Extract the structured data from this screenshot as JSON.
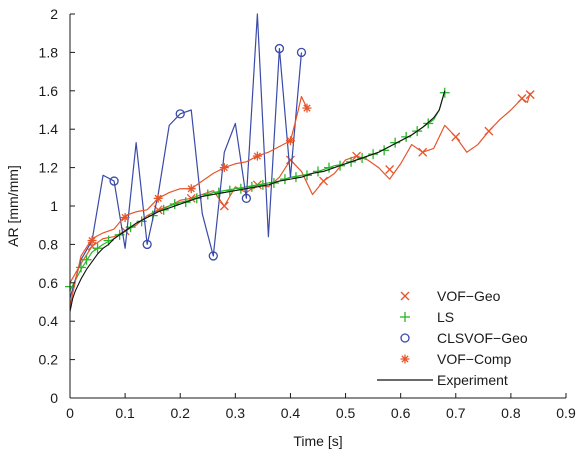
{
  "chart_data": {
    "type": "line",
    "xlabel": "Time [s]",
    "ylabel": "AR [mm/mm]",
    "xlim": [
      0,
      0.9
    ],
    "ylim": [
      0,
      2
    ],
    "x_ticks": [
      0,
      0.1,
      0.2,
      0.3,
      0.4,
      0.5,
      0.6,
      0.7,
      0.8,
      0.9
    ],
    "x_tick_labels": [
      "0",
      "0.1",
      "0.2",
      "0.3",
      "0.4",
      "0.5",
      "0.6",
      "0.7",
      "0.8",
      "0.9"
    ],
    "y_ticks": [
      0,
      0.2,
      0.4,
      0.6,
      0.8,
      1,
      1.2,
      1.4,
      1.6,
      1.8,
      2
    ],
    "y_tick_labels": [
      "0",
      "0.2",
      "0.4",
      "0.6",
      "0.8",
      "1",
      "1.2",
      "1.4",
      "1.6",
      "1.8",
      "2"
    ],
    "grid": false,
    "legend_position": "bottom-right",
    "series": [
      {
        "name": "VOF−Geo",
        "marker": "x",
        "color": "#e8552a",
        "line": [
          [
            0.0,
            0.6
          ],
          [
            0.02,
            0.7
          ],
          [
            0.04,
            0.79
          ],
          [
            0.06,
            0.83
          ],
          [
            0.08,
            0.84
          ],
          [
            0.1,
            0.87
          ],
          [
            0.12,
            0.9
          ],
          [
            0.14,
            0.95
          ],
          [
            0.16,
            0.98
          ],
          [
            0.18,
            1.0
          ],
          [
            0.2,
            1.03
          ],
          [
            0.22,
            1.04
          ],
          [
            0.24,
            1.06
          ],
          [
            0.26,
            1.08
          ],
          [
            0.28,
            1.0
          ],
          [
            0.3,
            1.1
          ],
          [
            0.32,
            1.07
          ],
          [
            0.34,
            1.11
          ],
          [
            0.36,
            1.1
          ],
          [
            0.38,
            1.15
          ],
          [
            0.4,
            1.24
          ],
          [
            0.42,
            1.18
          ],
          [
            0.44,
            1.06
          ],
          [
            0.46,
            1.13
          ],
          [
            0.48,
            1.17
          ],
          [
            0.5,
            1.24
          ],
          [
            0.52,
            1.26
          ],
          [
            0.54,
            1.24
          ],
          [
            0.56,
            1.2
          ],
          [
            0.58,
            1.14
          ],
          [
            0.6,
            1.22
          ],
          [
            0.62,
            1.32
          ],
          [
            0.64,
            1.28
          ],
          [
            0.66,
            1.3
          ],
          [
            0.68,
            1.42
          ],
          [
            0.7,
            1.36
          ],
          [
            0.72,
            1.28
          ],
          [
            0.74,
            1.32
          ],
          [
            0.76,
            1.39
          ],
          [
            0.78,
            1.45
          ],
          [
            0.8,
            1.5
          ],
          [
            0.82,
            1.56
          ],
          [
            0.83,
            1.54
          ],
          [
            0.835,
            1.59
          ]
        ],
        "markers": [
          [
            0.04,
            0.79
          ],
          [
            0.1,
            0.87
          ],
          [
            0.16,
            0.98
          ],
          [
            0.22,
            1.04
          ],
          [
            0.28,
            1.0
          ],
          [
            0.34,
            1.11
          ],
          [
            0.4,
            1.24
          ],
          [
            0.46,
            1.13
          ],
          [
            0.52,
            1.26
          ],
          [
            0.58,
            1.19
          ],
          [
            0.64,
            1.28
          ],
          [
            0.7,
            1.36
          ],
          [
            0.76,
            1.39
          ],
          [
            0.82,
            1.56
          ],
          [
            0.835,
            1.58
          ]
        ]
      },
      {
        "name": "LS",
        "marker": "+",
        "color": "#2bb52b",
        "line": [
          [
            0.0,
            0.56
          ],
          [
            0.02,
            0.67
          ],
          [
            0.04,
            0.76
          ],
          [
            0.06,
            0.8
          ],
          [
            0.08,
            0.83
          ],
          [
            0.1,
            0.87
          ],
          [
            0.12,
            0.91
          ],
          [
            0.14,
            0.94
          ],
          [
            0.16,
            0.97
          ],
          [
            0.18,
            1.0
          ],
          [
            0.2,
            1.02
          ],
          [
            0.22,
            1.03
          ],
          [
            0.24,
            1.05
          ],
          [
            0.26,
            1.07
          ],
          [
            0.28,
            1.08
          ],
          [
            0.3,
            1.09
          ],
          [
            0.32,
            1.1
          ],
          [
            0.34,
            1.11
          ],
          [
            0.36,
            1.12
          ],
          [
            0.38,
            1.13
          ],
          [
            0.4,
            1.15
          ],
          [
            0.42,
            1.16
          ],
          [
            0.44,
            1.17
          ],
          [
            0.46,
            1.19
          ],
          [
            0.48,
            1.21
          ],
          [
            0.5,
            1.22
          ],
          [
            0.52,
            1.24
          ],
          [
            0.54,
            1.26
          ],
          [
            0.56,
            1.28
          ],
          [
            0.58,
            1.31
          ],
          [
            0.6,
            1.34
          ],
          [
            0.62,
            1.37
          ],
          [
            0.64,
            1.41
          ],
          [
            0.66,
            1.45
          ],
          [
            0.67,
            1.5
          ],
          [
            0.68,
            1.6
          ]
        ],
        "markers": [
          [
            0.0,
            0.58
          ],
          [
            0.02,
            0.68
          ],
          [
            0.03,
            0.72
          ],
          [
            0.05,
            0.78
          ],
          [
            0.07,
            0.82
          ],
          [
            0.09,
            0.85
          ],
          [
            0.11,
            0.89
          ],
          [
            0.13,
            0.92
          ],
          [
            0.15,
            0.95
          ],
          [
            0.17,
            0.98
          ],
          [
            0.19,
            1.01
          ],
          [
            0.21,
            1.02
          ],
          [
            0.23,
            1.04
          ],
          [
            0.25,
            1.06
          ],
          [
            0.27,
            1.07
          ],
          [
            0.29,
            1.08
          ],
          [
            0.31,
            1.09
          ],
          [
            0.33,
            1.1
          ],
          [
            0.35,
            1.11
          ],
          [
            0.37,
            1.12
          ],
          [
            0.39,
            1.14
          ],
          [
            0.41,
            1.15
          ],
          [
            0.43,
            1.16
          ],
          [
            0.45,
            1.18
          ],
          [
            0.47,
            1.2
          ],
          [
            0.49,
            1.21
          ],
          [
            0.51,
            1.23
          ],
          [
            0.53,
            1.25
          ],
          [
            0.55,
            1.27
          ],
          [
            0.57,
            1.29
          ],
          [
            0.59,
            1.33
          ],
          [
            0.61,
            1.36
          ],
          [
            0.63,
            1.39
          ],
          [
            0.65,
            1.43
          ],
          [
            0.68,
            1.59
          ]
        ]
      },
      {
        "name": "CLSVOF−Geo",
        "marker": "o",
        "color": "#3a4aa8",
        "line": [
          [
            0.0,
            0.52
          ],
          [
            0.02,
            0.72
          ],
          [
            0.04,
            0.82
          ],
          [
            0.06,
            1.16
          ],
          [
            0.08,
            1.13
          ],
          [
            0.1,
            0.78
          ],
          [
            0.12,
            1.33
          ],
          [
            0.14,
            0.8
          ],
          [
            0.16,
            1.06
          ],
          [
            0.18,
            1.42
          ],
          [
            0.2,
            1.48
          ],
          [
            0.22,
            1.5
          ],
          [
            0.24,
            0.96
          ],
          [
            0.26,
            0.74
          ],
          [
            0.28,
            1.28
          ],
          [
            0.3,
            1.43
          ],
          [
            0.32,
            1.04
          ],
          [
            0.34,
            2.0
          ],
          [
            0.36,
            0.84
          ],
          [
            0.38,
            1.82
          ],
          [
            0.4,
            1.15
          ],
          [
            0.42,
            1.8
          ]
        ],
        "markers": [
          [
            0.08,
            1.13
          ],
          [
            0.14,
            0.8
          ],
          [
            0.2,
            1.48
          ],
          [
            0.26,
            0.74
          ],
          [
            0.32,
            1.04
          ],
          [
            0.38,
            1.82
          ],
          [
            0.42,
            1.8
          ]
        ]
      },
      {
        "name": "VOF−Comp",
        "marker": "*",
        "color": "#e8552a",
        "line": [
          [
            0.0,
            0.48
          ],
          [
            0.02,
            0.74
          ],
          [
            0.04,
            0.83
          ],
          [
            0.06,
            0.86
          ],
          [
            0.08,
            0.88
          ],
          [
            0.1,
            0.95
          ],
          [
            0.12,
            0.97
          ],
          [
            0.14,
            0.98
          ],
          [
            0.16,
            1.04
          ],
          [
            0.18,
            1.07
          ],
          [
            0.2,
            1.09
          ],
          [
            0.22,
            1.09
          ],
          [
            0.24,
            1.13
          ],
          [
            0.26,
            1.17
          ],
          [
            0.28,
            1.2
          ],
          [
            0.3,
            1.22
          ],
          [
            0.32,
            1.23
          ],
          [
            0.34,
            1.26
          ],
          [
            0.36,
            1.28
          ],
          [
            0.38,
            1.31
          ],
          [
            0.4,
            1.34
          ],
          [
            0.41,
            1.45
          ],
          [
            0.42,
            1.57
          ],
          [
            0.43,
            1.51
          ]
        ],
        "markers": [
          [
            0.04,
            0.82
          ],
          [
            0.1,
            0.94
          ],
          [
            0.16,
            1.04
          ],
          [
            0.22,
            1.09
          ],
          [
            0.28,
            1.2
          ],
          [
            0.34,
            1.26
          ],
          [
            0.4,
            1.34
          ],
          [
            0.43,
            1.51
          ]
        ]
      },
      {
        "name": "Experiment",
        "marker": "none",
        "color": "#111111",
        "line": [
          [
            0.0,
            0.45
          ],
          [
            0.005,
            0.52
          ],
          [
            0.01,
            0.56
          ],
          [
            0.02,
            0.62
          ],
          [
            0.03,
            0.67
          ],
          [
            0.04,
            0.71
          ],
          [
            0.05,
            0.75
          ],
          [
            0.06,
            0.78
          ],
          [
            0.07,
            0.8
          ],
          [
            0.08,
            0.83
          ],
          [
            0.09,
            0.85
          ],
          [
            0.1,
            0.87
          ],
          [
            0.12,
            0.91
          ],
          [
            0.14,
            0.94
          ],
          [
            0.16,
            0.97
          ],
          [
            0.18,
            0.99
          ],
          [
            0.2,
            1.01
          ],
          [
            0.22,
            1.03
          ],
          [
            0.24,
            1.05
          ],
          [
            0.26,
            1.06
          ],
          [
            0.28,
            1.07
          ],
          [
            0.3,
            1.08
          ],
          [
            0.32,
            1.09
          ],
          [
            0.34,
            1.1
          ],
          [
            0.36,
            1.11
          ],
          [
            0.38,
            1.13
          ],
          [
            0.4,
            1.14
          ],
          [
            0.42,
            1.15
          ],
          [
            0.44,
            1.17
          ],
          [
            0.46,
            1.18
          ],
          [
            0.48,
            1.2
          ],
          [
            0.5,
            1.22
          ],
          [
            0.52,
            1.24
          ],
          [
            0.54,
            1.26
          ],
          [
            0.56,
            1.28
          ],
          [
            0.58,
            1.31
          ],
          [
            0.6,
            1.34
          ],
          [
            0.62,
            1.37
          ],
          [
            0.64,
            1.41
          ],
          [
            0.66,
            1.46
          ],
          [
            0.67,
            1.5
          ],
          [
            0.68,
            1.6
          ]
        ],
        "markers": []
      }
    ]
  },
  "colors": {
    "axis": "#1a1a1a"
  }
}
